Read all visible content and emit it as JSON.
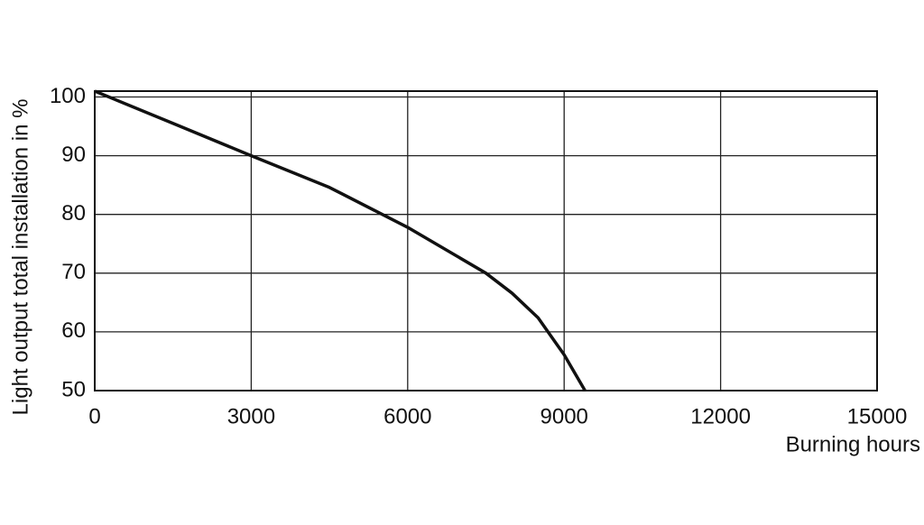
{
  "chart_data": {
    "type": "line",
    "x_label": "Burning hours",
    "y_label": "Light output total installation in %",
    "x": [
      0,
      1500,
      3000,
      4500,
      6000,
      7500,
      8000,
      8500,
      9000,
      9400
    ],
    "series": [
      {
        "color": "#111111",
        "values": [
          101,
          95.5,
          90,
          84.6,
          77.8,
          70,
          66.6,
          62.4,
          56.1,
          50
        ]
      }
    ],
    "xlim": [
      0,
      15000
    ],
    "xticks": [
      0,
      3000,
      6000,
      9000,
      12000,
      15000
    ],
    "ylim": [
      50,
      101
    ],
    "yticks": [
      50,
      60,
      70,
      80,
      90,
      100
    ],
    "grid": true
  }
}
